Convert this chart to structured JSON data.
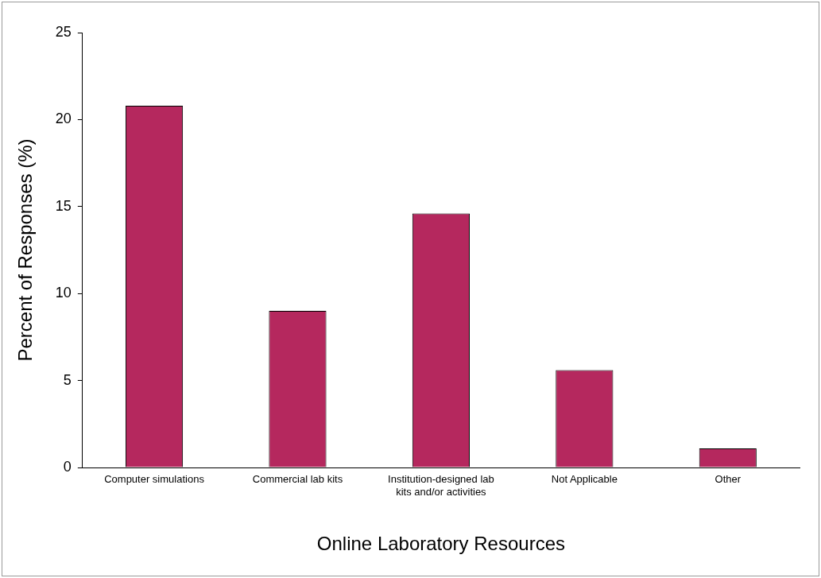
{
  "chart_data": {
    "type": "bar",
    "xlabel": "Online Laboratory Resources",
    "ylabel": "Percent of Responses (%)",
    "categories": [
      "Computer simulations",
      "Commercial lab kits",
      "Institution-designed lab kits and/or activities",
      "Not Applicable",
      "Other"
    ],
    "values": [
      20.8,
      9.0,
      14.6,
      5.6,
      1.1
    ],
    "color": "#b5285e",
    "ylim": [
      0,
      25
    ],
    "yticks": [
      0,
      5,
      10,
      15,
      20,
      25
    ],
    "grid": false,
    "legend": false
  }
}
